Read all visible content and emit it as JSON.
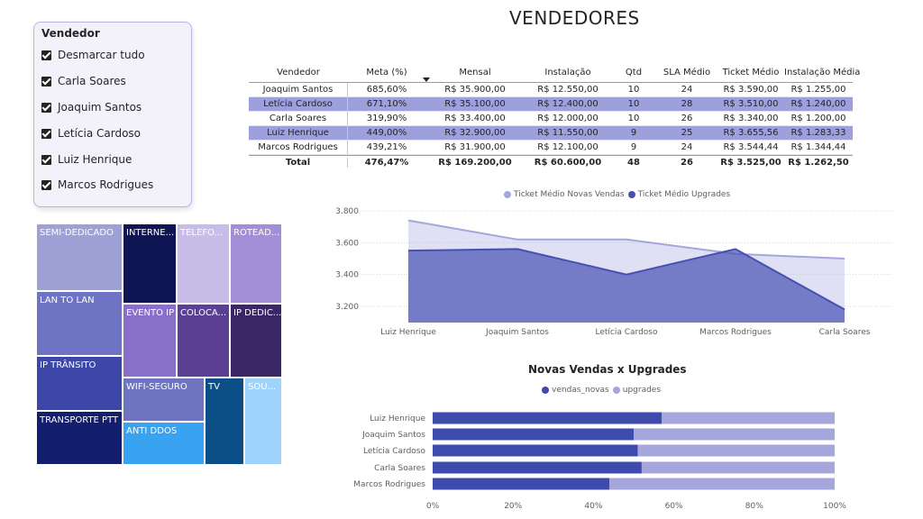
{
  "page_title": "VENDEDORES",
  "slicer": {
    "title": "Vendedor",
    "items": [
      "Desmarcar tudo",
      "Carla Soares",
      "Joaquim Santos",
      "Letícia Cardoso",
      "Luiz Henrique",
      "Marcos Rodrigues"
    ]
  },
  "table": {
    "headers": [
      "Vendedor",
      "Meta (%)",
      "Mensal",
      "Instalação",
      "Qtd",
      "SLA Médio",
      "Ticket Médio",
      "Instalação Média"
    ],
    "rows": [
      [
        "Joaquim Santos",
        "685,60%",
        "R$ 35.900,00",
        "R$ 12.550,00",
        "10",
        "24",
        "R$ 3.590,00",
        "R$ 1.255,00"
      ],
      [
        "Letícia Cardoso",
        "671,10%",
        "R$ 35.100,00",
        "R$ 12.400,00",
        "10",
        "28",
        "R$ 3.510,00",
        "R$ 1.240,00"
      ],
      [
        "Carla Soares",
        "319,90%",
        "R$ 33.400,00",
        "R$ 12.000,00",
        "10",
        "26",
        "R$ 3.340,00",
        "R$ 1.200,00"
      ],
      [
        "Luiz Henrique",
        "449,00%",
        "R$ 32.900,00",
        "R$ 11.550,00",
        "9",
        "25",
        "R$ 3.655,56",
        "R$ 1.283,33"
      ],
      [
        "Marcos Rodrigues",
        "439,21%",
        "R$ 31.900,00",
        "R$ 12.100,00",
        "9",
        "24",
        "R$ 3.544,44",
        "R$ 1.344,44"
      ]
    ],
    "highlighted_rows": [
      1,
      3
    ],
    "total": [
      "Total",
      "476,47%",
      "R$ 169.200,00",
      "R$ 60.600,00",
      "48",
      "26",
      "R$ 3.525,00",
      "R$ 1.262,50"
    ],
    "highlight_color": "#9ea0dc"
  },
  "treemap": {
    "tiles": [
      {
        "label": "SEMI-DEDICADO",
        "color": "#9ea1d6"
      },
      {
        "label": "LAN TO LAN",
        "color": "#6f73c4"
      },
      {
        "label": "IP TRÂNSITO",
        "color": "#3d47a8"
      },
      {
        "label": "TRANSPORTE PTT",
        "color": "#131f6e"
      },
      {
        "label": "INTERNE...",
        "color": "#0f1554"
      },
      {
        "label": "TELEFO...",
        "color": "#c8bce8"
      },
      {
        "label": "ROTEAD...",
        "color": "#a38fd8"
      },
      {
        "label": "EVENTO IP",
        "color": "#8a6fca"
      },
      {
        "label": "COLOCA...",
        "color": "#5b3f93"
      },
      {
        "label": "IP DEDIC...",
        "color": "#3b2665"
      },
      {
        "label": "WIFI-SEGURO",
        "color": "#6e74c0"
      },
      {
        "label": "ANTI DDOS",
        "color": "#38a3f0"
      },
      {
        "label": "TV",
        "color": "#0c4f87"
      },
      {
        "label": "SOU...",
        "color": "#9fd3fb"
      }
    ]
  },
  "chart_data": [
    {
      "type": "area",
      "title": "",
      "categories": [
        "Luiz Henrique",
        "Joaquim Santos",
        "Letícia Cardoso",
        "Marcos Rodrigues",
        "Carla Soares"
      ],
      "series": [
        {
          "name": "Ticket Médio Novas Vendas",
          "color": "#a4a6dc",
          "values": [
            3740,
            3620,
            3620,
            3530,
            3500
          ]
        },
        {
          "name": "Ticket Médio Upgrades",
          "color": "#4650b4",
          "values": [
            3550,
            3560,
            3400,
            3560,
            3180
          ]
        }
      ],
      "yticks": [
        "3.200",
        "3.400",
        "3.600",
        "3.800"
      ],
      "ylim": [
        3120,
        3800
      ],
      "grid": true,
      "legend_position": "top"
    },
    {
      "type": "bar",
      "orientation": "horizontal",
      "stacked_percent": true,
      "title": "Novas Vendas x Upgrades",
      "categories": [
        "Luiz Henrique",
        "Joaquim Santos",
        "Letícia Cardoso",
        "Carla Soares",
        "Marcos Rodrigues"
      ],
      "series": [
        {
          "name": "vendas_novas",
          "color": "#3f4aad",
          "values": [
            57,
            50,
            51,
            52,
            44
          ]
        },
        {
          "name": "upgrades",
          "color": "#a4a6dc",
          "values": [
            43,
            50,
            49,
            48,
            56
          ]
        }
      ],
      "xticks": [
        "0%",
        "20%",
        "40%",
        "60%",
        "80%",
        "100%"
      ],
      "xlim": [
        0,
        100
      ],
      "legend_position": "top"
    }
  ]
}
